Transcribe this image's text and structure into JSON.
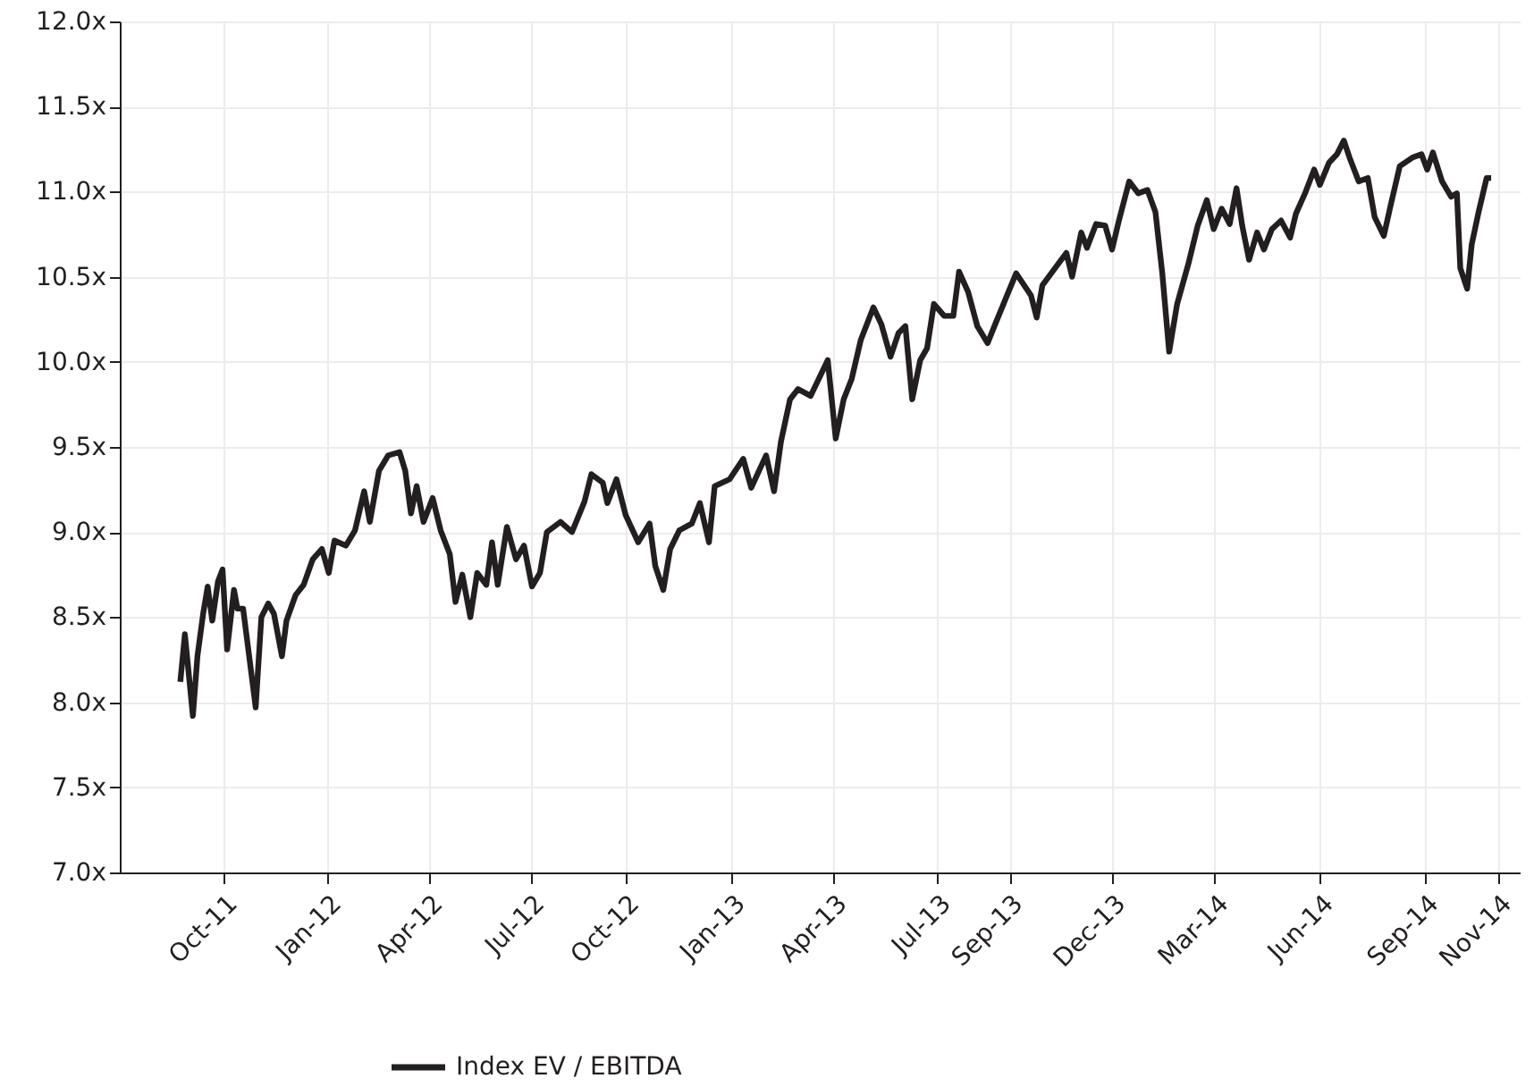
{
  "chart_data": {
    "type": "line",
    "xlim": [
      "2011-07-16",
      "2014-11-23"
    ],
    "xticks": [
      {
        "value": "2011-10-15",
        "label": "Oct-11"
      },
      {
        "value": "2012-01-14",
        "label": "Jan-12"
      },
      {
        "value": "2012-04-12",
        "label": "Apr-12"
      },
      {
        "value": "2012-07-10",
        "label": "Jul-12"
      },
      {
        "value": "2012-10-01",
        "label": "Oct-12"
      },
      {
        "value": "2013-01-02",
        "label": "Jan-13"
      },
      {
        "value": "2013-04-01",
        "label": "Apr-13"
      },
      {
        "value": "2013-07-01",
        "label": "Jul-13"
      },
      {
        "value": "2013-09-02",
        "label": "Sep-13"
      },
      {
        "value": "2013-12-01",
        "label": "Dec-13"
      },
      {
        "value": "2014-03-01",
        "label": "Mar-14"
      },
      {
        "value": "2014-06-01",
        "label": "Jun-14"
      },
      {
        "value": "2014-09-01",
        "label": "Sep-14"
      },
      {
        "value": "2014-11-04",
        "label": "Nov-14"
      }
    ],
    "ylim": [
      7.0,
      12.0
    ],
    "yticks": [
      {
        "value": 7.0,
        "label": "7.0x"
      },
      {
        "value": 7.5,
        "label": "7.5x"
      },
      {
        "value": 8.0,
        "label": "8.0x"
      },
      {
        "value": 8.5,
        "label": "8.5x"
      },
      {
        "value": 9.0,
        "label": "9.0x"
      },
      {
        "value": 9.5,
        "label": "9.5x"
      },
      {
        "value": 10.0,
        "label": "10.0x"
      },
      {
        "value": 10.5,
        "label": "10.5x"
      },
      {
        "value": 11.0,
        "label": "11.0x"
      },
      {
        "value": 11.5,
        "label": "11.5x"
      },
      {
        "value": 12.0,
        "label": "12.0x"
      }
    ],
    "grid": true,
    "legend": "bottom",
    "marker": "none",
    "line_style": "solid",
    "x": [
      "2011-09-07",
      "2011-09-11",
      "2011-09-18",
      "2011-09-22",
      "2011-09-27",
      "2011-10-01",
      "2011-10-05",
      "2011-10-10",
      "2011-10-14",
      "2011-10-18",
      "2011-10-24",
      "2011-10-27",
      "2011-11-01",
      "2011-11-05",
      "2011-11-12",
      "2011-11-17",
      "2011-11-23",
      "2011-11-28",
      "2011-12-05",
      "2011-12-09",
      "2011-12-17",
      "2011-12-24",
      "2012-01-01",
      "2012-01-09",
      "2012-01-15",
      "2012-01-20",
      "2012-01-30",
      "2012-02-07",
      "2012-02-15",
      "2012-02-20",
      "2012-02-28",
      "2012-03-07",
      "2012-03-17",
      "2012-03-22",
      "2012-03-27",
      "2012-04-01",
      "2012-04-07",
      "2012-04-15",
      "2012-04-22",
      "2012-04-30",
      "2012-05-05",
      "2012-05-11",
      "2012-05-18",
      "2012-05-24",
      "2012-06-01",
      "2012-06-06",
      "2012-06-11",
      "2012-06-19",
      "2012-06-27",
      "2012-07-04",
      "2012-07-11",
      "2012-07-18",
      "2012-07-24",
      "2012-08-05",
      "2012-08-15",
      "2012-08-26",
      "2012-09-01",
      "2012-09-11",
      "2012-09-15",
      "2012-09-23",
      "2012-10-01",
      "2012-10-12",
      "2012-10-22",
      "2012-10-27",
      "2012-11-03",
      "2012-11-09",
      "2012-11-17",
      "2012-11-28",
      "2012-12-05",
      "2012-12-13",
      "2012-12-18",
      "2012-12-31",
      "2013-01-12",
      "2013-01-19",
      "2013-02-01",
      "2013-02-08",
      "2013-02-14",
      "2013-02-22",
      "2013-03-01",
      "2013-03-12",
      "2013-03-17",
      "2013-03-27",
      "2013-04-03",
      "2013-04-10",
      "2013-04-17",
      "2013-04-25",
      "2013-05-06",
      "2013-05-13",
      "2013-05-21",
      "2013-05-28",
      "2013-06-03",
      "2013-06-09",
      "2013-06-16",
      "2013-06-22",
      "2013-06-28",
      "2013-07-07",
      "2013-07-15",
      "2013-07-20",
      "2013-07-28",
      "2013-08-05",
      "2013-08-14",
      "2013-08-20",
      "2013-08-31",
      "2013-09-08",
      "2013-09-21",
      "2013-09-26",
      "2013-10-01",
      "2013-10-12",
      "2013-10-22",
      "2013-10-27",
      "2013-11-04",
      "2013-11-09",
      "2013-11-17",
      "2013-11-25",
      "2013-12-01",
      "2013-12-07",
      "2013-12-16",
      "2013-12-24",
      "2014-01-01",
      "2014-01-08",
      "2014-01-14",
      "2014-01-20",
      "2014-01-27",
      "2014-02-06",
      "2014-02-14",
      "2014-02-22",
      "2014-02-28",
      "2014-03-07",
      "2014-03-14",
      "2014-03-20",
      "2014-03-25",
      "2014-03-31",
      "2014-04-07",
      "2014-04-13",
      "2014-04-20",
      "2014-04-28",
      "2014-05-06",
      "2014-05-11",
      "2014-05-19",
      "2014-05-27",
      "2014-06-01",
      "2014-06-09",
      "2014-06-16",
      "2014-06-22",
      "2014-06-27",
      "2014-07-05",
      "2014-07-13",
      "2014-07-19",
      "2014-07-27",
      "2014-08-02",
      "2014-08-10",
      "2014-08-21",
      "2014-08-29",
      "2014-09-03",
      "2014-09-08",
      "2014-09-16",
      "2014-09-24",
      "2014-09-29",
      "2014-10-02",
      "2014-10-08",
      "2014-10-12",
      "2014-10-18",
      "2014-10-25",
      "2014-10-29"
    ],
    "series": [
      {
        "name": "Index EV / EBITDA",
        "color": "#231f20",
        "values": [
          8.12,
          8.4,
          7.92,
          8.27,
          8.52,
          8.68,
          8.48,
          8.71,
          8.78,
          8.31,
          8.66,
          8.55,
          8.55,
          8.34,
          7.97,
          8.5,
          8.58,
          8.52,
          8.27,
          8.48,
          8.63,
          8.69,
          8.84,
          8.9,
          8.76,
          8.95,
          8.92,
          9.01,
          9.24,
          9.06,
          9.36,
          9.45,
          9.47,
          9.36,
          9.11,
          9.27,
          9.06,
          9.2,
          9.01,
          8.87,
          8.59,
          8.75,
          8.5,
          8.76,
          8.69,
          8.94,
          8.69,
          9.03,
          8.84,
          8.92,
          8.68,
          8.76,
          9.0,
          9.06,
          9.0,
          9.18,
          9.34,
          9.29,
          9.17,
          9.31,
          9.1,
          8.94,
          9.05,
          8.8,
          8.66,
          8.9,
          9.01,
          9.05,
          9.17,
          8.94,
          9.27,
          9.31,
          9.43,
          9.26,
          9.45,
          9.24,
          9.53,
          9.78,
          9.84,
          9.8,
          9.87,
          10.01,
          9.55,
          9.78,
          9.9,
          10.13,
          10.32,
          10.22,
          10.03,
          10.17,
          10.21,
          9.78,
          10.01,
          10.08,
          10.34,
          10.27,
          10.27,
          10.53,
          10.41,
          10.21,
          10.11,
          10.21,
          10.39,
          10.52,
          10.39,
          10.26,
          10.45,
          10.55,
          10.64,
          10.5,
          10.76,
          10.67,
          10.81,
          10.8,
          10.66,
          10.83,
          11.06,
          10.99,
          11.01,
          10.88,
          10.52,
          10.06,
          10.34,
          10.58,
          10.8,
          10.95,
          10.78,
          10.9,
          10.81,
          11.02,
          10.8,
          10.6,
          10.76,
          10.66,
          10.78,
          10.83,
          10.73,
          10.87,
          10.99,
          11.13,
          11.04,
          11.17,
          11.22,
          11.3,
          11.2,
          11.06,
          11.08,
          10.85,
          10.74,
          10.92,
          11.15,
          11.2,
          11.22,
          11.13,
          11.23,
          11.06,
          10.97,
          10.99,
          10.55,
          10.43,
          10.69,
          10.88,
          11.08,
          11.08
        ]
      }
    ]
  }
}
